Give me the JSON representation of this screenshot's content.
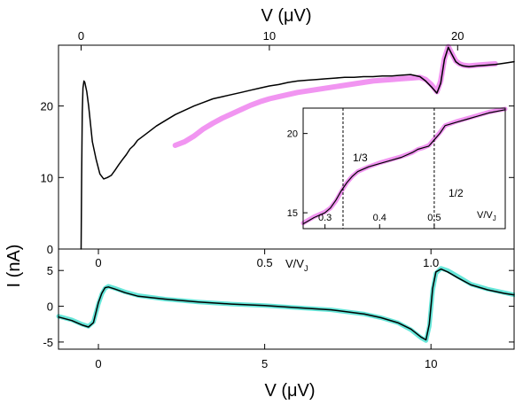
{
  "chart_data": [
    {
      "panel": "top",
      "type": "line",
      "xlabel": "V (μV)",
      "ylabel": "I (nA)",
      "xlim": [
        -1.2,
        23.0
      ],
      "ylim": [
        0,
        28.5
      ],
      "x_ticks": [
        0,
        10,
        20
      ],
      "y_ticks": [
        0,
        10,
        20
      ],
      "colors": {
        "measured": "#000000",
        "fit": "#ee82ee"
      },
      "series": [
        {
          "role": "measured",
          "x": [
            0,
            0.03,
            0.06,
            0.1,
            0.15,
            0.2,
            0.3,
            0.4,
            0.5,
            0.6,
            0.8,
            1.0,
            1.2,
            1.4,
            1.6,
            1.8,
            2.0,
            2.2,
            2.4,
            2.6,
            2.8,
            3.0,
            3.5,
            4.0,
            4.5,
            5.0,
            5.5,
            6.0,
            6.5,
            7.0,
            7.5,
            8.0,
            8.5,
            9.0,
            9.5,
            10.0,
            10.5,
            11.0,
            11.5,
            12.0,
            12.5,
            13.0,
            13.5,
            14.0,
            14.5,
            15.0,
            15.5,
            16.0,
            16.5,
            17.0,
            17.5,
            18.0,
            18.3,
            18.6,
            18.9,
            19.1,
            19.3,
            19.5,
            19.7,
            19.9,
            20.1,
            20.3,
            20.6,
            21.0,
            21.5,
            22.0,
            22.5,
            23.0
          ],
          "y": [
            0,
            10,
            19,
            22.5,
            23.5,
            23.3,
            22,
            20,
            17.5,
            15,
            12.5,
            10.5,
            9.8,
            10,
            10.3,
            11,
            11.8,
            12.5,
            13.2,
            14,
            14.5,
            15.2,
            16.2,
            17.2,
            18,
            18.8,
            19.4,
            20,
            20.5,
            21,
            21.3,
            21.6,
            21.9,
            22.2,
            22.5,
            22.8,
            23,
            23.3,
            23.5,
            23.6,
            23.7,
            23.8,
            23.9,
            24.0,
            24.0,
            24.1,
            24.1,
            24.2,
            24.2,
            24.3,
            24.4,
            24.1,
            23.5,
            22.7,
            21.8,
            23.2,
            26.5,
            28.2,
            27.2,
            26.2,
            25.8,
            25.6,
            25.5,
            25.6,
            25.7,
            25.8,
            26.0,
            26.2
          ]
        },
        {
          "role": "fit",
          "x": [
            5.0,
            5.5,
            6.0,
            6.5,
            7.0,
            7.5,
            8.0,
            8.5,
            9.0,
            9.5,
            10.0,
            10.5,
            11.0,
            11.5,
            15.5,
            16.0,
            16.5,
            17.0,
            17.5,
            18.0,
            18.3,
            18.6,
            18.9,
            19.1,
            19.3,
            19.5,
            19.7,
            19.9,
            20.1,
            20.3,
            20.6,
            21.0,
            21.5,
            22.0
          ],
          "y": [
            14.5,
            15.0,
            15.8,
            16.8,
            17.6,
            18.3,
            18.9,
            19.5,
            20.1,
            20.6,
            21.0,
            21.3,
            21.6,
            21.9,
            23.5,
            23.6,
            23.7,
            23.8,
            23.9,
            24.0,
            23.7,
            23.0,
            22.0,
            23.5,
            26.6,
            28.3,
            27.3,
            26.3,
            25.9,
            25.7,
            25.6,
            25.7,
            25.8,
            25.9
          ]
        }
      ],
      "inset": {
        "type": "line",
        "xlabel": "V/V",
        "xlabel_sub": "J",
        "xlim": [
          0.26,
          0.63
        ],
        "ylim": [
          14.0,
          21.6
        ],
        "x_ticks": [
          0.3,
          0.4,
          0.5
        ],
        "x_tick_labels": [
          "0.3",
          "0.4",
          "0.5"
        ],
        "y_ticks": [
          15,
          20
        ],
        "y_tick_labels": [
          "15",
          "20"
        ],
        "vlines": [
          0.333,
          0.5
        ],
        "annotations": [
          "1/3",
          "1/2"
        ],
        "series": [
          {
            "role": "measured",
            "x": [
              0.26,
              0.28,
              0.3,
              0.31,
              0.32,
              0.33,
              0.34,
              0.35,
              0.36,
              0.38,
              0.4,
              0.42,
              0.44,
              0.46,
              0.47,
              0.48,
              0.49,
              0.5,
              0.51,
              0.52,
              0.54,
              0.56,
              0.58,
              0.6,
              0.63
            ],
            "y": [
              14.3,
              14.7,
              15.0,
              15.3,
              15.8,
              16.4,
              16.9,
              17.3,
              17.6,
              17.9,
              18.1,
              18.3,
              18.5,
              18.8,
              19.0,
              19.1,
              19.2,
              19.6,
              20.0,
              20.5,
              20.7,
              20.9,
              21.1,
              21.3,
              21.5
            ]
          },
          {
            "role": "fit",
            "x": [
              0.26,
              0.28,
              0.3,
              0.31,
              0.32,
              0.33,
              0.34,
              0.35,
              0.36,
              0.38,
              0.4,
              0.42,
              0.44,
              0.46,
              0.47,
              0.48,
              0.49,
              0.5,
              0.51,
              0.52,
              0.54,
              0.56,
              0.58,
              0.6,
              0.63
            ],
            "y": [
              14.35,
              14.75,
              15.05,
              15.3,
              15.75,
              16.35,
              16.9,
              17.3,
              17.6,
              17.9,
              18.15,
              18.35,
              18.55,
              18.8,
              19.0,
              19.1,
              19.25,
              19.65,
              20.05,
              20.5,
              20.75,
              20.95,
              21.15,
              21.35,
              21.55
            ]
          }
        ]
      }
    },
    {
      "panel": "bottom",
      "type": "line",
      "xlabel": "V (μV)",
      "xlim": [
        -1.2,
        12.5
      ],
      "ylim": [
        -6,
        8
      ],
      "x_ticks": [
        0,
        5,
        10
      ],
      "y_ticks": [
        -5,
        0,
        5
      ],
      "colors": {
        "measured": "#000000",
        "fit": "#40e0d0"
      },
      "secondary_x": {
        "label": "V/V",
        "label_sub": "J",
        "ticks": [
          0,
          0.5,
          1.0
        ],
        "tick_labels": [
          "0",
          "0.5",
          "1.0"
        ],
        "scale": 10
      },
      "series": [
        {
          "role": "measured",
          "x": [
            -1.2,
            -0.8,
            -0.5,
            -0.3,
            -0.15,
            0,
            0.1,
            0.2,
            0.3,
            0.5,
            0.8,
            1.2,
            2,
            3,
            4,
            5,
            6,
            7,
            8,
            8.5,
            9,
            9.4,
            9.7,
            9.85,
            9.95,
            10.05,
            10.15,
            10.3,
            10.5,
            10.8,
            11.2,
            11.7,
            12.2,
            12.5
          ],
          "y": [
            -1.5,
            -2.0,
            -2.6,
            -2.9,
            -2.3,
            0.5,
            1.8,
            2.6,
            2.7,
            2.4,
            1.9,
            1.4,
            1.0,
            0.6,
            0.3,
            0.1,
            -0.2,
            -0.5,
            -1.1,
            -1.6,
            -2.3,
            -3.2,
            -4.3,
            -4.7,
            -2.5,
            2.5,
            4.8,
            5.2,
            4.8,
            4.0,
            3.0,
            2.3,
            1.8,
            1.6
          ]
        },
        {
          "role": "fit",
          "x": [
            -1.2,
            -0.8,
            -0.5,
            -0.3,
            -0.15,
            0,
            0.1,
            0.2,
            0.3,
            0.5,
            0.8,
            1.2,
            2,
            3,
            4,
            5,
            6,
            7,
            8,
            8.5,
            9,
            9.4,
            9.7,
            9.85,
            9.95,
            10.05,
            10.15,
            10.3,
            10.5,
            10.8,
            11.2,
            11.7,
            12.2,
            12.5
          ],
          "y": [
            -1.4,
            -1.9,
            -2.5,
            -2.8,
            -2.2,
            0.3,
            1.7,
            2.5,
            2.8,
            2.5,
            2.0,
            1.5,
            1.0,
            0.6,
            0.3,
            0.1,
            -0.2,
            -0.5,
            -1.1,
            -1.6,
            -2.3,
            -3.3,
            -4.4,
            -4.8,
            -2.8,
            2.2,
            4.6,
            5.3,
            5.0,
            4.2,
            3.1,
            2.4,
            1.9,
            1.6
          ]
        }
      ]
    }
  ]
}
